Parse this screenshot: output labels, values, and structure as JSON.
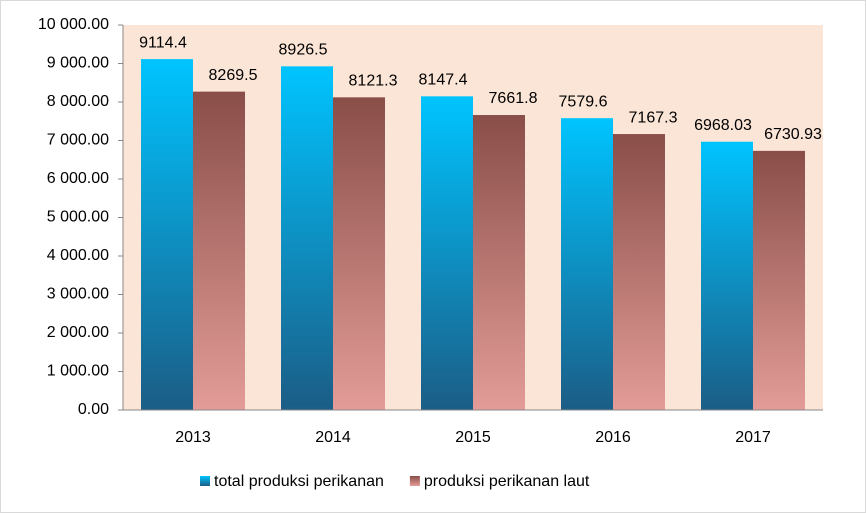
{
  "chart_data": {
    "type": "bar",
    "categories": [
      "2013",
      "2014",
      "2015",
      "2016",
      "2017"
    ],
    "series": [
      {
        "name": "total produksi perikanan",
        "color": "#00c4ff",
        "color_end": "#1b5d86",
        "values": [
          9114.4,
          8926.5,
          8147.4,
          7579.6,
          6968.03
        ]
      },
      {
        "name": "produksi perikanan laut",
        "color": "#8a4e49",
        "color_end": "#e39c97",
        "values": [
          8269.5,
          8121.3,
          7661.8,
          7167.3,
          6730.93
        ]
      }
    ],
    "ylim": [
      0,
      10000
    ],
    "yticks": [
      {
        "value": 0,
        "label": "0.00"
      },
      {
        "value": 1000,
        "label": "1 000.00"
      },
      {
        "value": 2000,
        "label": "2 000.00"
      },
      {
        "value": 3000,
        "label": "3 000.00"
      },
      {
        "value": 4000,
        "label": "4 000.00"
      },
      {
        "value": 5000,
        "label": "5 000.00"
      },
      {
        "value": 6000,
        "label": "6 000.00"
      },
      {
        "value": 7000,
        "label": "7 000.00"
      },
      {
        "value": 8000,
        "label": "8 000.00"
      },
      {
        "value": 9000,
        "label": "9 000.00"
      },
      {
        "value": 10000,
        "label": "10 000.00"
      }
    ],
    "plot_background": "#fbe5d6",
    "legend": "bottom"
  }
}
